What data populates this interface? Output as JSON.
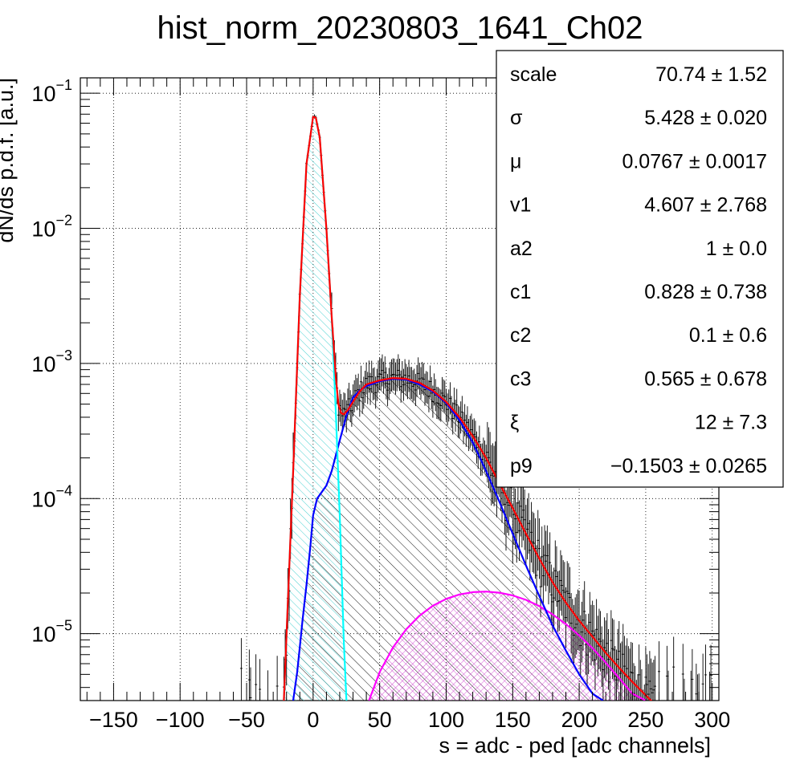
{
  "chart_data": {
    "type": "histogram",
    "title": "hist_norm_20230803_1641_Ch02",
    "xlabel": "s = adc - ped [adc channels]",
    "ylabel": "dN/ds p.d.f. [a.u.]",
    "xlim": [
      -175,
      305
    ],
    "ylim": [
      3.2e-06,
      0.13
    ],
    "y_scale": "log",
    "grid": true,
    "x_ticks": [
      -150,
      -100,
      -50,
      0,
      50,
      100,
      150,
      200,
      250,
      300
    ],
    "x_tick_labels": [
      "−150",
      "−100",
      "−50",
      "0",
      "50",
      "100",
      "150",
      "200",
      "250",
      "300"
    ],
    "y_ticks": [
      0.1,
      0.01,
      0.001,
      0.0001,
      1e-05
    ],
    "y_tick_labels": [
      {
        "base": "10",
        "exp": "−1"
      },
      {
        "base": "10",
        "exp": "−2"
      },
      {
        "base": "10",
        "exp": "−3"
      },
      {
        "base": "10",
        "exp": "−4"
      },
      {
        "base": "10",
        "exp": "−5"
      }
    ],
    "series": [
      {
        "color": "#ff0000",
        "kind": "total-fit",
        "x": [
          -22,
          -15,
          -10,
          -5,
          0,
          2,
          5,
          10,
          14,
          17,
          19,
          21,
          23,
          26,
          30,
          35,
          40,
          50,
          60,
          70,
          80,
          90,
          100,
          110,
          120,
          130,
          140,
          150,
          160,
          170,
          180,
          190,
          200,
          210,
          220,
          230,
          240,
          250,
          257
        ],
        "y": [
          3.2e-06,
          0.00016,
          0.0032,
          0.03,
          0.067,
          0.066,
          0.047,
          0.0099,
          0.0022,
          0.0008,
          0.0005,
          0.00043,
          0.00042,
          0.00045,
          0.00052,
          0.00062,
          0.0007,
          0.00075,
          0.00078,
          0.00077,
          0.00072,
          0.00063,
          0.00052,
          0.0004,
          0.00029,
          0.0002,
          0.00013,
          8.5e-05,
          5.5e-05,
          3.6e-05,
          2.4e-05,
          1.7e-05,
          1.25e-05,
          9.5e-06,
          7.2e-06,
          5.6e-06,
          4.4e-06,
          3.5e-06,
          3e-06
        ]
      },
      {
        "color": "#00ffff",
        "kind": "pedestal-component",
        "x": [
          -22,
          -15,
          -10,
          -5,
          0,
          2,
          5,
          10,
          14,
          17,
          20,
          23,
          25
        ],
        "y": [
          3.2e-06,
          0.00016,
          0.0032,
          0.03,
          0.067,
          0.066,
          0.047,
          0.0099,
          0.0022,
          0.00045,
          7.5e-05,
          9.2e-06,
          3.2e-06
        ]
      },
      {
        "color": "#0000ff",
        "kind": "signal-component",
        "x": [
          -15,
          -12,
          -10,
          -8,
          -5,
          -2,
          0,
          3,
          6,
          10,
          14,
          20,
          25,
          30,
          35,
          40,
          50,
          60,
          70,
          80,
          90,
          100,
          110,
          120,
          130,
          140,
          150,
          160,
          170,
          180,
          190,
          200,
          210,
          218
        ],
        "y": [
          3.2e-06,
          5.2e-06,
          8e-06,
          1.25e-05,
          2.3e-05,
          4.5e-05,
          7.5e-05,
          0.0001,
          0.00011,
          0.000125,
          0.00016,
          0.00027,
          0.00041,
          0.00056,
          0.00063,
          0.00068,
          0.00074,
          0.00077,
          0.00076,
          0.0007,
          0.00062,
          0.00051,
          0.00038,
          0.00026,
          0.00016,
          9.5e-05,
          5.5e-05,
          3.2e-05,
          1.9e-05,
          1.15e-05,
          7.5e-06,
          5e-06,
          3.6e-06,
          3.2e-06
        ]
      },
      {
        "color": "#ff00ff",
        "kind": "secondary-component",
        "x": [
          42,
          50,
          60,
          70,
          80,
          90,
          100,
          110,
          120,
          130,
          140,
          150,
          160,
          170,
          180,
          190,
          200,
          210,
          220,
          230,
          240,
          250
        ],
        "y": [
          3.2e-06,
          5.2e-06,
          7.9e-06,
          1.08e-05,
          1.36e-05,
          1.61e-05,
          1.81e-05,
          1.95e-05,
          2.03e-05,
          2.05e-05,
          2.01e-05,
          1.92e-05,
          1.78e-05,
          1.6e-05,
          1.39e-05,
          1.18e-05,
          9.7e-06,
          7.8e-06,
          6.1e-06,
          4.7e-06,
          3.6e-06,
          3.2e-06
        ]
      }
    ],
    "stats_box": [
      {
        "name": "scale",
        "value": "70.74 ± 1.52"
      },
      {
        "name": "σ",
        "value": "5.428 ± 0.020"
      },
      {
        "name": "μ",
        "value": "0.0767 ± 0.0017"
      },
      {
        "name": "v1",
        "value": "4.607 ± 2.768"
      },
      {
        "name": "a2",
        "value": "1 ± 0.0"
      },
      {
        "name": "c1",
        "value": "0.828 ± 0.738"
      },
      {
        "name": "c2",
        "value": "0.1 ± 0.6"
      },
      {
        "name": "c3",
        "value": "0.565 ± 0.678"
      },
      {
        "name": "ξ",
        "value": "12 ± 7.3"
      },
      {
        "name": "p9",
        "value": "−0.1503 ± 0.0265"
      }
    ]
  }
}
